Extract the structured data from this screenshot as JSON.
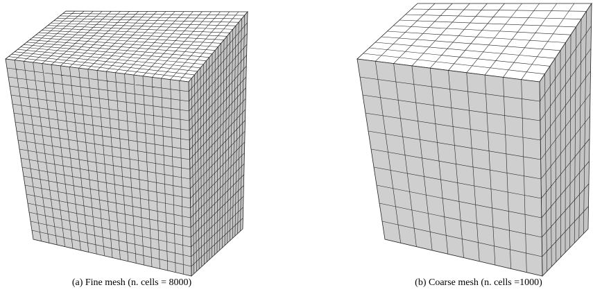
{
  "figure": {
    "panels": [
      {
        "caption": "(a)  Fine mesh (n. cells = 8000)"
      },
      {
        "caption": "(b) Coarse mesh (n. cells =1000)"
      }
    ]
  }
}
